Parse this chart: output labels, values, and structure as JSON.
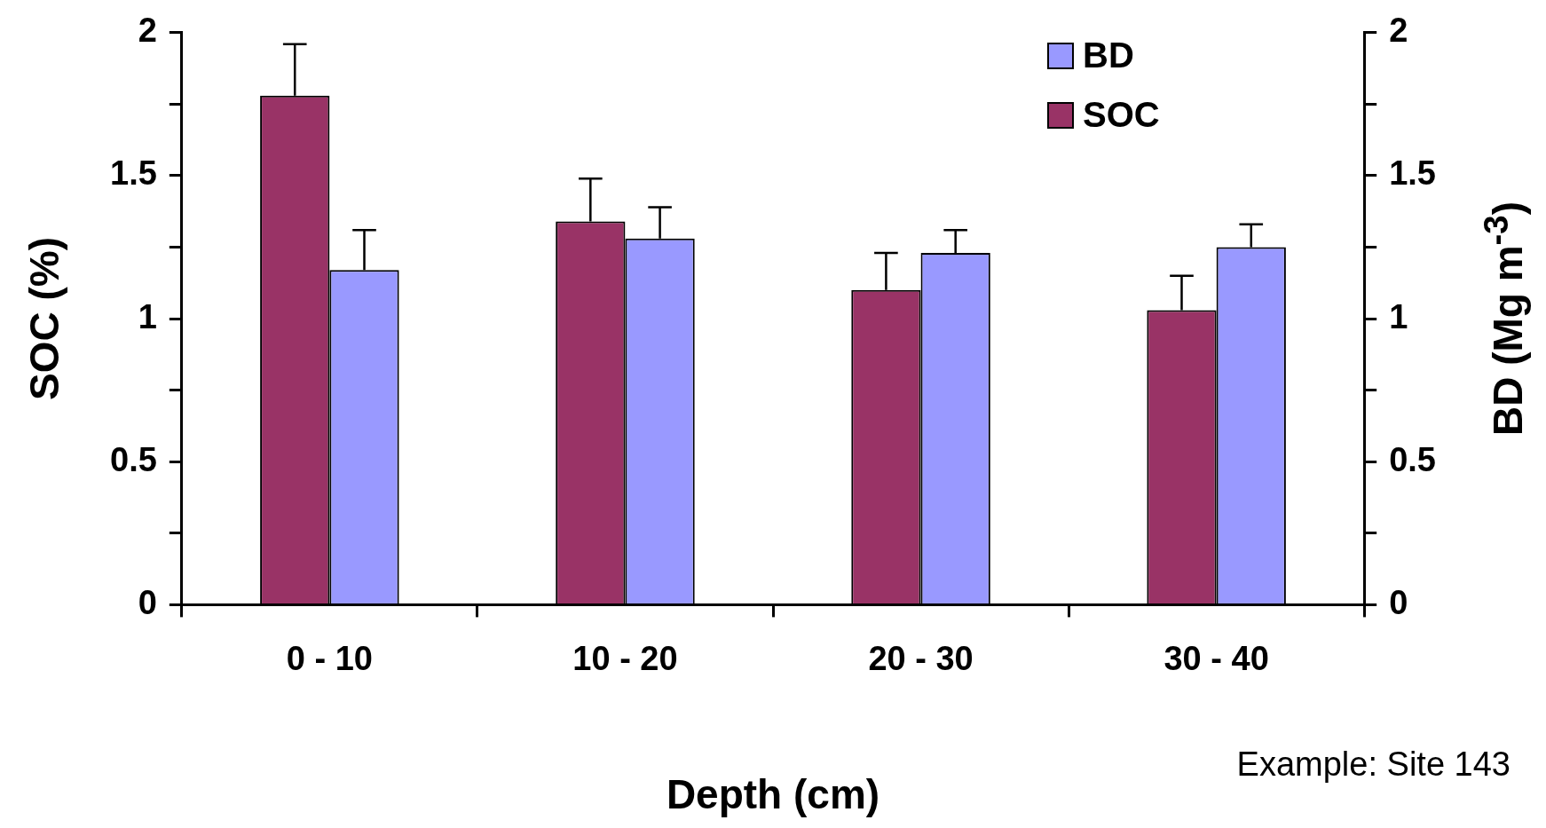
{
  "chart_data": {
    "type": "bar",
    "xlabel": "Depth (cm)",
    "ylabel": "SOC (%)",
    "y2label": "BD (Mg m$^{-3}$)",
    "categories": [
      "0 - 10",
      "10 - 20",
      "20 - 30",
      "30 - 40"
    ],
    "series": [
      {
        "name": "SOC",
        "color": "#993366",
        "values": [
          1.78,
          1.34,
          1.1,
          1.03
        ],
        "errors": [
          [
            1.78,
            1.96
          ],
          [
            1.34,
            1.49
          ],
          [
            1.1,
            1.23
          ],
          [
            1.03,
            1.15
          ]
        ]
      },
      {
        "name": "BD",
        "color": "#9999ff",
        "axis": "y2",
        "values": [
          1.17,
          1.28,
          1.23,
          1.25
        ],
        "errors": [
          [
            1.17,
            1.31
          ],
          [
            1.28,
            1.39
          ],
          [
            1.23,
            1.31
          ],
          [
            1.25,
            1.33
          ]
        ]
      }
    ],
    "ylim": [
      0,
      2
    ],
    "yticks": [
      0,
      {
        "value": 0.25,
        "label": null
      },
      0.5,
      {
        "value": 0.75,
        "label": null
      },
      1,
      {
        "value": 1.25,
        "label": null
      },
      1.5,
      {
        "value": 1.75,
        "label": null
      },
      2
    ],
    "y2lim": [
      0,
      2
    ],
    "y2ticks": [
      0,
      {
        "value": 0.25,
        "label": null
      },
      0.5,
      {
        "value": 0.75,
        "label": null
      },
      1,
      {
        "value": 1.25,
        "label": null
      },
      1.5,
      {
        "value": 1.75,
        "label": null
      },
      2
    ],
    "grid": false,
    "legend": "top right",
    "annotations": [
      "Example: Site 143"
    ]
  }
}
